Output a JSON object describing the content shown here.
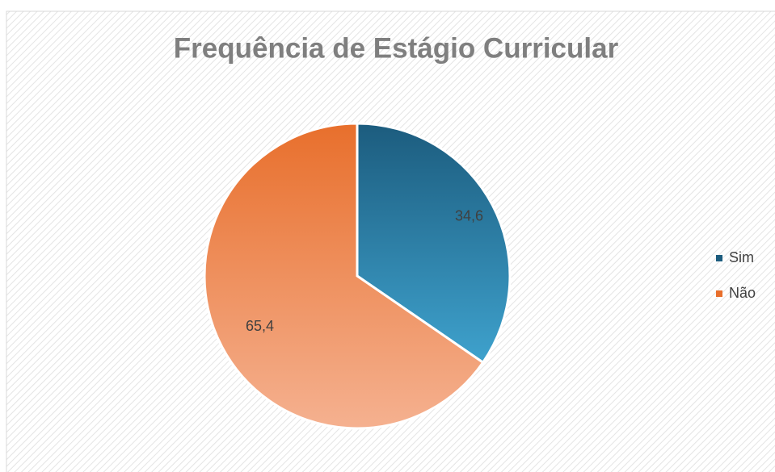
{
  "chart_data": {
    "type": "pie",
    "title": "Frequência de Estágio Curricular",
    "categories": [
      "Sim",
      "Não"
    ],
    "values": [
      34.6,
      65.4
    ],
    "value_labels": [
      "34,6",
      "65,4"
    ],
    "colors": [
      [
        "#1c5c7e",
        "#48b5e3"
      ],
      [
        "#e86f2c",
        "#f5b190"
      ]
    ],
    "legend": "right"
  }
}
